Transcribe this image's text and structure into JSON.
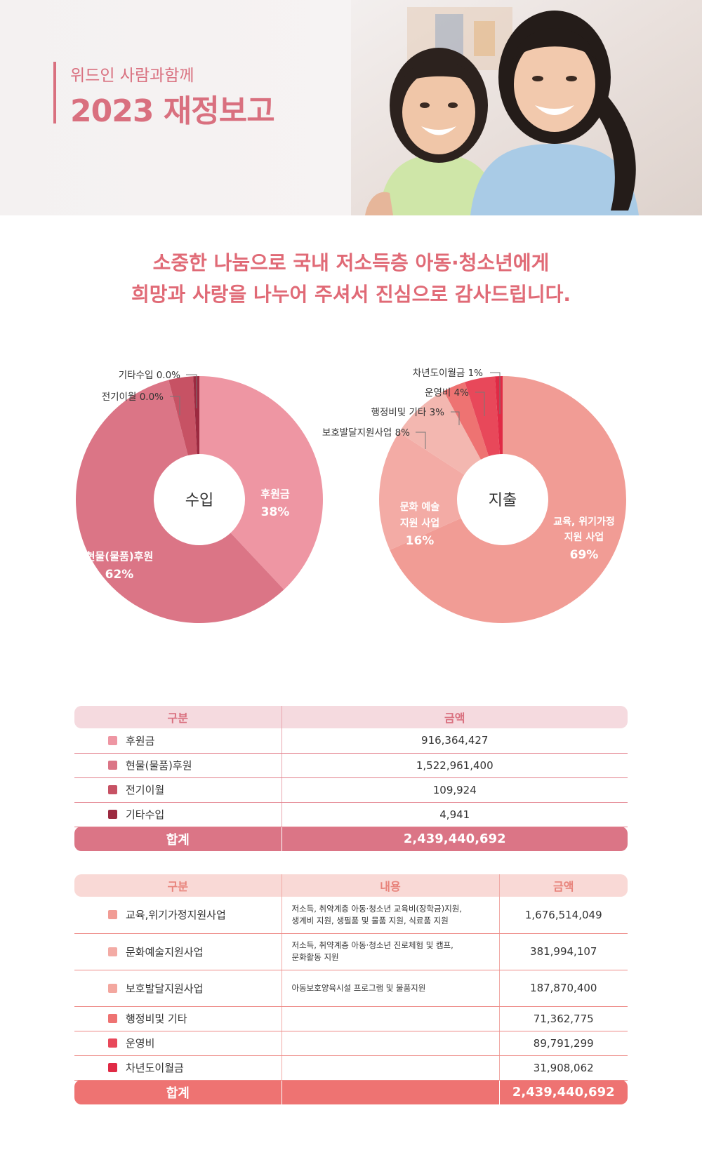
{
  "header": {
    "subtitle": "위드인 사람과함께",
    "title": "2023 재정보고"
  },
  "message": {
    "line1": "소중한 나눔으로 국내 저소득층 아동·청소년에게",
    "line2": "희망과 사랑을 나누어 주셔서 진심으로 감사드립니다."
  },
  "chart_data": [
    {
      "type": "pie",
      "title": "수입",
      "categories": [
        "후원금",
        "현물(물품)후원",
        "전기이월",
        "기타수입"
      ],
      "values": [
        38,
        62,
        0.0,
        0.0
      ],
      "unit": "%",
      "inner_labels": [
        {
          "name": "후원금",
          "value": "38%"
        },
        {
          "name": "현물(물품)후원",
          "value": "62%"
        }
      ],
      "callouts": [
        "기타수입 0.0%",
        "전기이월 0.0%"
      ],
      "colors": [
        "#ee96a3",
        "#db7586",
        "#c75264",
        "#9c2a40"
      ]
    },
    {
      "type": "pie",
      "title": "지출",
      "categories": [
        "교육, 위기가정 지원 사업",
        "문화 예술 지원 사업",
        "보호발달지원사업",
        "행정비및 기타",
        "운영비",
        "차년도이월금"
      ],
      "values": [
        69,
        16,
        8,
        3,
        4,
        1
      ],
      "unit": "%",
      "inner_labels": [
        {
          "line1": "교육, 위기가정",
          "line2": "지원 사업",
          "value": "69%"
        },
        {
          "line1": "문화 예술",
          "line2": "지원 사업",
          "value": "16%"
        }
      ],
      "callouts": [
        "차년도이월금 1%",
        "운영비 4%",
        "행정비및 기타 3%",
        "보호발달지원사업 8%"
      ],
      "colors": [
        "#f19c95",
        "#f3aba5",
        "#f3b7b0",
        "#ee7372",
        "#e8485a",
        "#e02a45"
      ]
    }
  ],
  "income_table": {
    "headers": [
      "구분",
      "금액"
    ],
    "rows": [
      {
        "label": "후원금",
        "amount": "916,364,427",
        "color": "#ee96a3"
      },
      {
        "label": "현물(물품)후원",
        "amount": "1,522,961,400",
        "color": "#db7586"
      },
      {
        "label": "전기이월",
        "amount": "109,924",
        "color": "#c75264"
      },
      {
        "label": "기타수입",
        "amount": "4,941",
        "color": "#9c2a40"
      }
    ],
    "total_label": "합계",
    "total_amount": "2,439,440,692"
  },
  "expense_table": {
    "headers": [
      "구분",
      "내용",
      "금액"
    ],
    "rows": [
      {
        "label": "교육,위기가정지원사업",
        "desc1": "저소득, 취약계층 아동·청소년 교육비(장학금)지원,",
        "desc2": "생계비 지원, 생필품 및 물품 지원, 식료품 지원",
        "amount": "1,676,514,049",
        "color": "#f19c95"
      },
      {
        "label": "문화예술지원사업",
        "desc1": "저소득, 취약계층 아동·청소년 진로체험 및 캠프,",
        "desc2": "문화활동 지원",
        "amount": "381,994,107",
        "color": "#f3aba5"
      },
      {
        "label": "보호발달지원사업",
        "desc1": "아동보호양육시설 프로그램 및 물품지원",
        "desc2": "",
        "amount": "187,870,400",
        "color": "#f3a79f"
      },
      {
        "label": "행정비및 기타",
        "desc1": "",
        "desc2": "",
        "amount": "71,362,775",
        "color": "#ee7372"
      },
      {
        "label": "운영비",
        "desc1": "",
        "desc2": "",
        "amount": "89,791,299",
        "color": "#e8485a"
      },
      {
        "label": "차년도이월금",
        "desc1": "",
        "desc2": "",
        "amount": "31,908,062",
        "color": "#e02a45"
      }
    ],
    "total_label": "합계",
    "total_amount": "2,439,440,692"
  }
}
